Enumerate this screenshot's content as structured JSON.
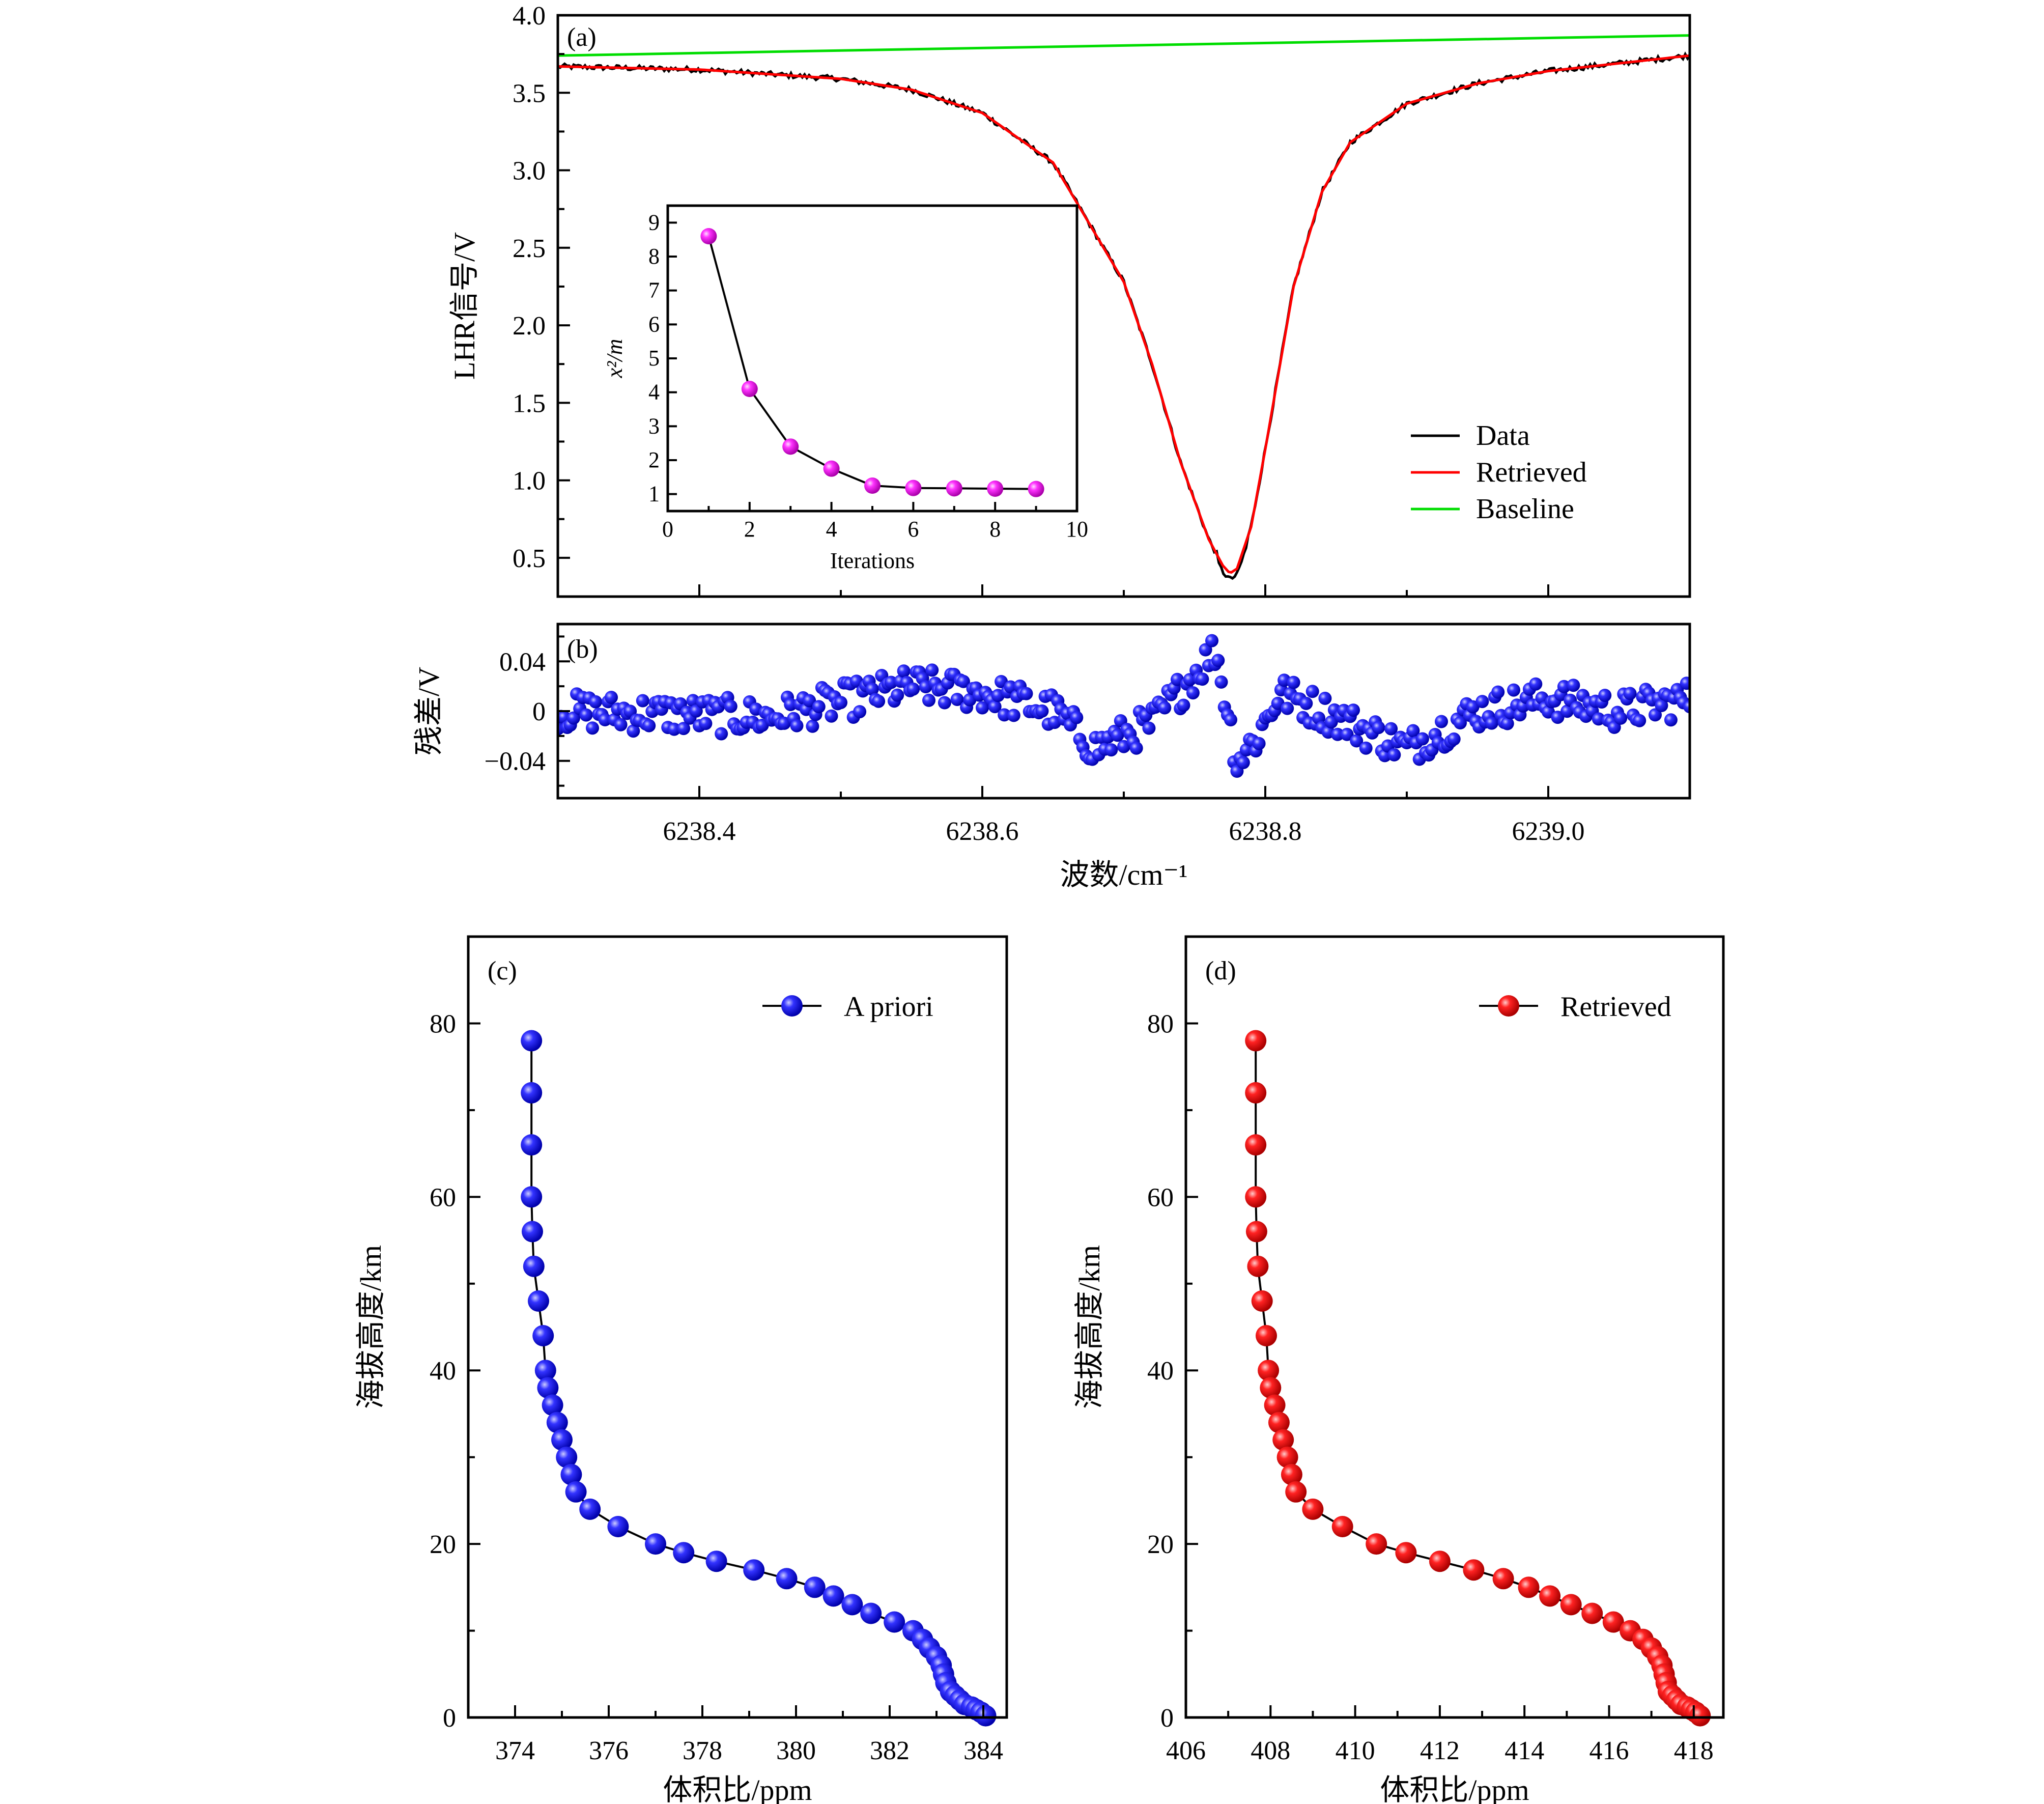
{
  "chart_data": [
    {
      "panel": "a",
      "type": "line",
      "label": "(a)",
      "ylabel": "LHR信号/V",
      "ylim": [
        0.25,
        4.0
      ],
      "yticks": [
        "4.0",
        "3.5",
        "3.0",
        "2.5",
        "2.0",
        "1.5",
        "1.0",
        "0.5"
      ],
      "xlim": [
        6238.3,
        6239.1
      ],
      "legend_position": "bottom-right",
      "series": [
        {
          "name": "Data",
          "color": "#000000",
          "noisy": true
        },
        {
          "name": "Retrieved",
          "color": "#ff0000",
          "x": [
            6238.3,
            6238.4,
            6238.5,
            6238.55,
            6238.6,
            6238.65,
            6238.7,
            6238.72,
            6238.74,
            6238.76,
            6238.77,
            6238.775,
            6238.78,
            6238.79,
            6238.8,
            6238.82,
            6238.84,
            6238.86,
            6238.9,
            6238.95,
            6239.0,
            6239.05,
            6239.1
          ],
          "y": [
            3.67,
            3.65,
            3.59,
            3.52,
            3.37,
            3.05,
            2.28,
            1.75,
            1.12,
            0.62,
            0.45,
            0.4,
            0.43,
            0.7,
            1.2,
            2.25,
            2.86,
            3.18,
            3.43,
            3.56,
            3.64,
            3.69,
            3.74
          ]
        },
        {
          "name": "Baseline",
          "color": "#00dd00",
          "x": [
            6238.3,
            6239.1
          ],
          "y": [
            3.74,
            3.87
          ]
        }
      ],
      "inset": {
        "type": "scatter-line",
        "xlabel": "Iterations",
        "ylabel": "x²/m",
        "xlim": [
          0,
          10
        ],
        "ylim": [
          0.5,
          9.5
        ],
        "xticks": [
          "0",
          "2",
          "4",
          "6",
          "8",
          "10"
        ],
        "yticks": [
          "1",
          "2",
          "3",
          "4",
          "5",
          "6",
          "7",
          "8",
          "9"
        ],
        "marker_color": "#ff00ff",
        "x": [
          1,
          2,
          3,
          4,
          5,
          6,
          7,
          8,
          9
        ],
        "y": [
          8.6,
          4.1,
          2.4,
          1.75,
          1.25,
          1.18,
          1.17,
          1.16,
          1.15
        ]
      }
    },
    {
      "panel": "b",
      "type": "scatter",
      "label": "(b)",
      "ylabel": "残差/V",
      "ylim": [
        -0.07,
        0.07
      ],
      "yticks": [
        "0.04",
        "0",
        "−0.04"
      ],
      "xlim": [
        6238.3,
        6239.1
      ],
      "xticks": [
        "6238.4",
        "6238.6",
        "6238.8",
        "6239.0"
      ],
      "xlabel": "波数/cm⁻¹",
      "marker_color": "#0000ff"
    },
    {
      "panel": "c",
      "type": "line",
      "label": "(c)",
      "xlabel": "体积比/ppm",
      "ylabel": "海拔高度/km",
      "xlim": [
        373.0,
        384.5
      ],
      "ylim": [
        0,
        90
      ],
      "xticks": [
        "374",
        "376",
        "378",
        "380",
        "382",
        "384"
      ],
      "yticks": [
        "80",
        "60",
        "40",
        "20",
        "0"
      ],
      "legend_position": "top-right",
      "series": [
        {
          "name": "A priori",
          "color": "#0000ff",
          "x": [
            374.35,
            374.35,
            374.35,
            374.35,
            374.37,
            374.4,
            374.5,
            374.6,
            374.65,
            374.7,
            374.8,
            374.9,
            375.0,
            375.1,
            375.2,
            375.3,
            375.6,
            376.2,
            377.0,
            377.6,
            378.3,
            379.1,
            379.8,
            380.4,
            380.8,
            381.2,
            381.6,
            382.1,
            382.5,
            382.7,
            382.85,
            383.0,
            383.1,
            383.15,
            383.2,
            383.3,
            383.4,
            383.5,
            383.6,
            383.75,
            383.85,
            383.95,
            384.05
          ],
          "y": [
            78,
            72,
            66,
            60,
            56,
            52,
            48,
            44,
            40,
            38,
            36,
            34,
            32,
            30,
            28,
            26,
            24,
            22,
            20,
            19,
            18,
            17,
            16,
            15,
            14,
            13,
            12,
            11,
            10,
            9,
            8,
            7,
            6,
            5,
            4,
            3,
            2.5,
            2,
            1.5,
            1.2,
            0.9,
            0.6,
            0.2
          ]
        }
      ]
    },
    {
      "panel": "d",
      "type": "line",
      "label": "(d)",
      "xlabel": "体积比/ppm",
      "ylabel": "海拔高度/km",
      "xlim": [
        406.0,
        418.7
      ],
      "ylim": [
        0,
        90
      ],
      "xticks": [
        "406",
        "408",
        "410",
        "412",
        "414",
        "416",
        "418"
      ],
      "yticks": [
        "80",
        "60",
        "40",
        "20",
        "0"
      ],
      "legend_position": "top-right",
      "series": [
        {
          "name": "Retrieved",
          "color": "#ff0000",
          "x": [
            407.65,
            407.65,
            407.65,
            407.65,
            407.67,
            407.7,
            407.8,
            407.9,
            407.95,
            408.0,
            408.1,
            408.2,
            408.3,
            408.4,
            408.5,
            408.6,
            409.0,
            409.7,
            410.5,
            411.2,
            412.0,
            412.8,
            413.5,
            414.1,
            414.6,
            415.1,
            415.6,
            416.1,
            416.5,
            416.8,
            417.0,
            417.15,
            417.25,
            417.3,
            417.35,
            417.4,
            417.5,
            417.6,
            417.7,
            417.85,
            417.95,
            418.05,
            418.15
          ],
          "y": [
            78,
            72,
            66,
            60,
            56,
            52,
            48,
            44,
            40,
            38,
            36,
            34,
            32,
            30,
            28,
            26,
            24,
            22,
            20,
            19,
            18,
            17,
            16,
            15,
            14,
            13,
            12,
            11,
            10,
            9,
            8,
            7,
            6,
            5,
            4,
            3,
            2.5,
            2,
            1.5,
            1.2,
            0.9,
            0.6,
            0.2
          ]
        }
      ]
    }
  ]
}
